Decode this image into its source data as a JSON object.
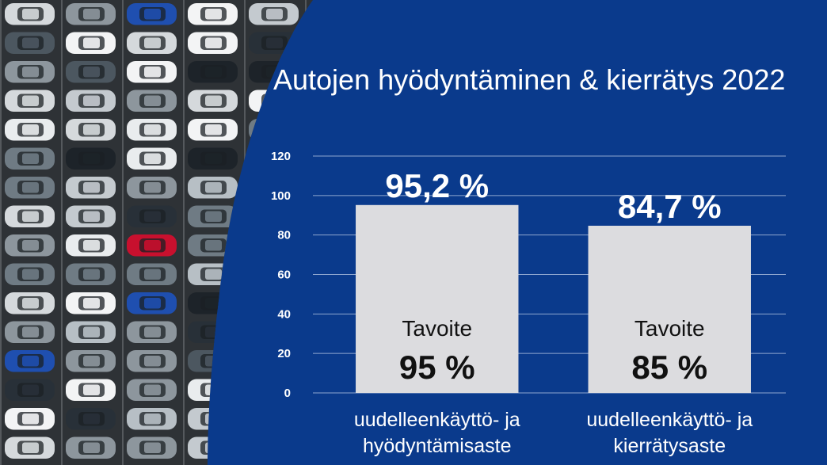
{
  "colors": {
    "background": "#0a3a8c",
    "bar": "#dcdcdf",
    "grid": "#8fa6cf",
    "text_light": "#ffffff",
    "text_dark": "#111111"
  },
  "chart_data": {
    "type": "bar",
    "title": "Autojen hyödyntäminen & kierrätys 2022",
    "categories": [
      "uudelleenkäyttö- ja hyödyntämisaste",
      "uudelleenkäyttö- ja kierrätysaste"
    ],
    "category_lines": [
      [
        "uudelleenkäyttö- ja",
        "hyödyntämisaste"
      ],
      [
        "uudelleenkäyttö- ja",
        "kierrätysaste"
      ]
    ],
    "values": [
      95.2,
      84.7
    ],
    "value_labels": [
      "95,2 %",
      "84,7 %"
    ],
    "targets": [
      {
        "label": "Tavoite",
        "value_label": "95 %"
      },
      {
        "label": "Tavoite",
        "value_label": "85 %"
      }
    ],
    "yticks": [
      0,
      20,
      40,
      60,
      80,
      100,
      120
    ],
    "ylim": [
      0,
      120
    ],
    "grid": true,
    "xlabel": "",
    "ylabel": ""
  }
}
